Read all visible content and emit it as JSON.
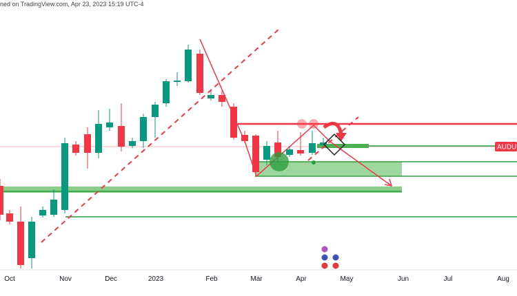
{
  "header": {
    "text": "ned on TradingView.com, Apr 23, 2023 15:19 UTC-4"
  },
  "symbol_label": "AUDUS",
  "x_axis_labels": [
    "Oct",
    "Nov",
    "Dec",
    "2023",
    "Feb",
    "Mar",
    "Apr",
    "May",
    "Jun",
    "Jul",
    "Aug"
  ]
}
